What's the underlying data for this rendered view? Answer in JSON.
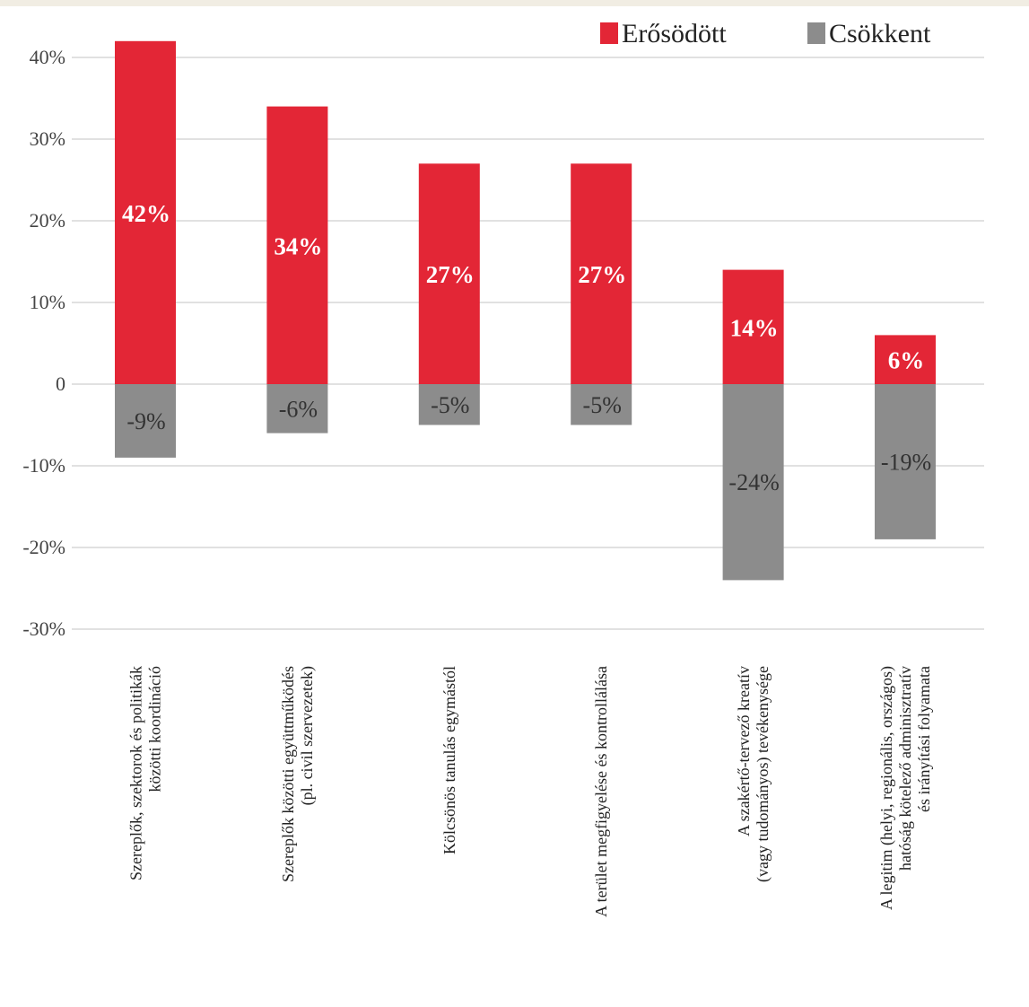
{
  "chart_data": {
    "type": "bar",
    "categories": [
      [
        "Szereplők, szektorok és politikák",
        "közötti koordináció"
      ],
      [
        "Szereplők közötti együttműködés",
        "(pl. civil szervezetek)"
      ],
      [
        "Kölcsönös tanulás egymástól"
      ],
      [
        "A terület megfigyelése és kontrollálása"
      ],
      [
        "A szakértő-tervező kreatív",
        "(vagy tudományos) tevékenysége"
      ],
      [
        "A legitim (helyi, regionális, országos)",
        "hatóság kötelező adminisztratív",
        "és irányítási folyamata"
      ]
    ],
    "series": [
      {
        "name": "Erősödött",
        "values": [
          42,
          34,
          27,
          27,
          14,
          6
        ],
        "labels": [
          "42%",
          "34%",
          "27%",
          "27%",
          "14%",
          "6%"
        ],
        "color": "#e32636"
      },
      {
        "name": "Csökkent",
        "values": [
          -9,
          -6,
          -5,
          -5,
          -24,
          -19
        ],
        "labels": [
          "-9%",
          "-6%",
          "-5%",
          "-5%",
          "-24%",
          "-19%"
        ],
        "color": "#8c8c8c"
      }
    ],
    "yticks": [
      40,
      30,
      20,
      10,
      0,
      -10,
      -20,
      -30
    ],
    "ytick_labels": [
      "40%",
      "30%",
      "20%",
      "10%",
      "0",
      "-10%",
      "-20%",
      "-30%"
    ],
    "ylim": [
      -30,
      40
    ],
    "grid": true,
    "legend": "top-right"
  }
}
